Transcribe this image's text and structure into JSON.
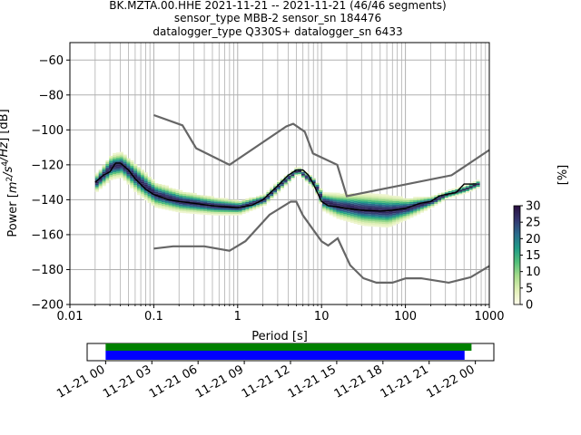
{
  "title": {
    "line1": "BK.MZTA.00.HHE   2021-11-21 -- 2021-11-21  (46/46 segments)",
    "line2": "sensor_type MBB-2 sensor_sn 184476",
    "line3": "datalogger_type Q330S+ datalogger_sn 6433"
  },
  "colors": {
    "mean": "#000000",
    "noise_model": "#666666",
    "grid": "#b0b0b0",
    "cmap": [
      "#fffcec",
      "#e2f0b8",
      "#a8dc8c",
      "#52bf7a",
      "#1f9a87",
      "#2a6a8c",
      "#33356e",
      "#2a0f3e"
    ],
    "data_bar": "#008000",
    "gap_bar": "#0000ff"
  },
  "chart_data": {
    "type": "line",
    "xlabel": "Period [s]",
    "ylabel_parts": [
      "Power [",
      "m",
      "2",
      "/",
      "s",
      "4",
      "/",
      "Hz",
      "] [dB]"
    ],
    "xscale": "log",
    "xlim": [
      0.01,
      1000
    ],
    "ylim": [
      -200,
      -50
    ],
    "xticks": [
      {
        "v": 0.01,
        "label": "0.01"
      },
      {
        "v": 0.1,
        "label": "0.1"
      },
      {
        "v": 1,
        "label": "1"
      },
      {
        "v": 10,
        "label": "10"
      },
      {
        "v": 100,
        "label": "100"
      },
      {
        "v": 1000,
        "label": "1000"
      }
    ],
    "yticks": [
      {
        "v": -60,
        "label": "−60"
      },
      {
        "v": -80,
        "label": "−80"
      },
      {
        "v": -100,
        "label": "−100"
      },
      {
        "v": -120,
        "label": "−120"
      },
      {
        "v": -140,
        "label": "−140"
      },
      {
        "v": -160,
        "label": "−160"
      },
      {
        "v": -180,
        "label": "−180"
      },
      {
        "v": -200,
        "label": "−200"
      }
    ],
    "grid": true,
    "mean": {
      "x": [
        0.02,
        0.025,
        0.03,
        0.035,
        0.04,
        0.05,
        0.06,
        0.08,
        0.1,
        0.15,
        0.2,
        0.3,
        0.5,
        0.7,
        1,
        1.5,
        2,
        3,
        4,
        5,
        6,
        7,
        8,
        10,
        12,
        15,
        20,
        30,
        50,
        70,
        100,
        150,
        200,
        250,
        300,
        400,
        500,
        700
      ],
      "y": [
        -130,
        -126,
        -124,
        -119,
        -119,
        -123,
        -128,
        -134,
        -137,
        -140,
        -141,
        -142,
        -143.5,
        -144,
        -144.5,
        -143,
        -140,
        -132,
        -126,
        -123,
        -123,
        -126,
        -131,
        -141,
        -143.5,
        -144,
        -145,
        -146,
        -146.5,
        -146,
        -145,
        -142,
        -141,
        -138,
        -137,
        -136,
        -131,
        -131
      ]
    },
    "psd_cloud": {
      "x": [
        0.02,
        0.03,
        0.04,
        0.06,
        0.1,
        0.2,
        0.5,
        1,
        2,
        3,
        5,
        8,
        10,
        15,
        30,
        60,
        100,
        200,
        300,
        500,
        700
      ],
      "center": [
        -130,
        -121,
        -120,
        -128,
        -137,
        -141,
        -143.5,
        -144.5,
        -140,
        -132,
        -123,
        -131,
        -141,
        -143.5,
        -145.5,
        -146.5,
        -145,
        -141,
        -137,
        -134,
        -131
      ],
      "spread": [
        5,
        7,
        7,
        8,
        7,
        6,
        5,
        4,
        3,
        3,
        2,
        3,
        5,
        7,
        9,
        9,
        6,
        3,
        2,
        2,
        2
      ],
      "peak_percent": 28
    },
    "noise_models": [
      {
        "x": [
          0.1,
          0.22,
          0.32,
          0.8,
          3.8,
          4.6,
          6.3,
          7.9,
          15.4,
          20,
          354.8,
          1000
        ],
        "y": [
          -91.5,
          -97.4,
          -110.5,
          -120,
          -98,
          -96.5,
          -101,
          -113.5,
          -120,
          -138,
          -126,
          -111.5
        ]
      },
      {
        "x": [
          0.1,
          0.17,
          0.4,
          0.8,
          1.24,
          2.4,
          4.3,
          5,
          6,
          10,
          12,
          15.6,
          21.9,
          31.6,
          45,
          70,
          101,
          154,
          328,
          600,
          1000
        ],
        "y": [
          -168,
          -166.7,
          -166.7,
          -169.2,
          -163.7,
          -148.6,
          -141.1,
          -141.1,
          -149,
          -163.8,
          -166.2,
          -162.1,
          -177.5,
          -185,
          -187.5,
          -187.5,
          -185,
          -185,
          -187.5,
          -184.4,
          -178
        ]
      }
    ],
    "colorbar": {
      "label": "[%]",
      "min": 0,
      "max": 30,
      "ticks": [
        0,
        5,
        10,
        15,
        20,
        25,
        30
      ]
    },
    "timeline": {
      "start": "2021-11-21T00:00",
      "end": "2021-11-22T00:00",
      "xlim_hours": [
        -1.2,
        25.2
      ],
      "tick_hours": [
        0,
        3,
        6,
        9,
        12,
        15,
        18,
        21,
        24
      ],
      "tick_labels": [
        "11-21 00",
        "11-21 03",
        "11-21 06",
        "11-21 09",
        "11-21 12",
        "11-21 15",
        "11-21 18",
        "11-21 21",
        "11-22 00"
      ],
      "data_bar_hours": [
        0,
        23.75
      ],
      "gap_bar_hours": [
        0,
        23.3
      ]
    }
  }
}
